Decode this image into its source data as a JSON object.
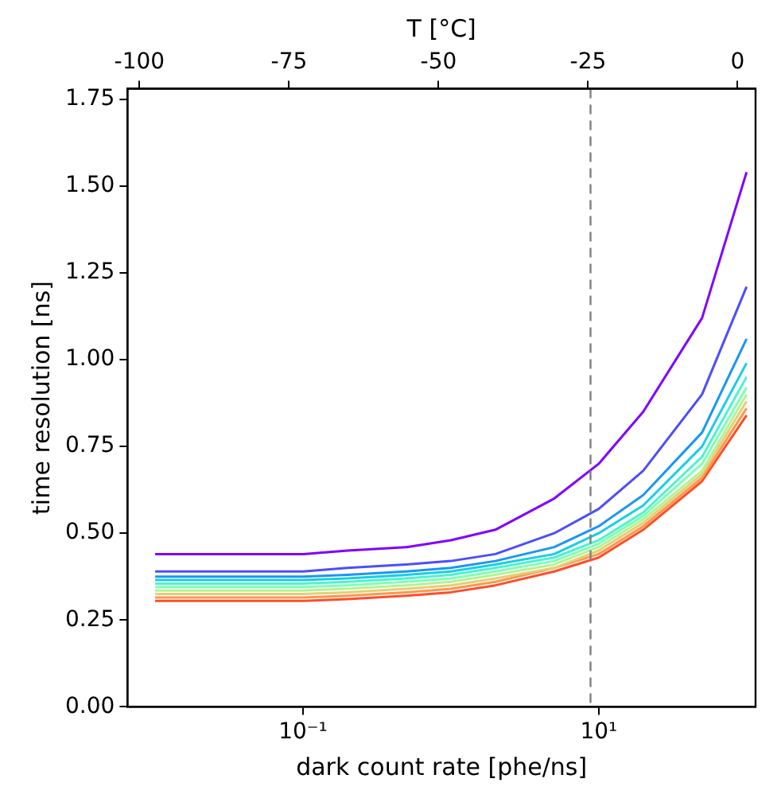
{
  "chart_data": {
    "type": "line",
    "xlabel": "dark count rate [phe/ns]",
    "ylabel": "time resolution [ns]",
    "x2label": "T [°C]",
    "log": "x",
    "xlim": [
      0.0065,
      115
    ],
    "xticks": [
      {
        "value": 0.1,
        "label": "10⁻¹"
      },
      {
        "value": 10,
        "label": "10¹"
      }
    ],
    "x2lim": [
      -102,
      3
    ],
    "x2ticks": [
      -100,
      -75,
      -50,
      -25,
      0
    ],
    "ylim": [
      0,
      1.78
    ],
    "yticks": [
      {
        "value": 0,
        "label": "0.00"
      },
      {
        "value": 0.25,
        "label": "0.25"
      },
      {
        "value": 0.5,
        "label": "0.50"
      },
      {
        "value": 0.75,
        "label": "0.75"
      },
      {
        "value": 1,
        "label": "1.00"
      },
      {
        "value": 1.25,
        "label": "1.25"
      },
      {
        "value": 1.5,
        "label": "1.50"
      },
      {
        "value": 1.75,
        "label": "1.75"
      }
    ],
    "grid": false,
    "legend": false,
    "marker": "none",
    "line_style": "solid",
    "x": [
      0.01,
      0.02,
      0.05,
      0.1,
      0.2,
      0.5,
      1,
      2,
      5,
      10,
      20,
      50,
      100
    ],
    "ref_lines": [
      {
        "axis": "x",
        "value": 8.8,
        "color": "#808080",
        "line_style": "dashed"
      }
    ],
    "series": [
      {
        "color": "#8000ff",
        "values": [
          0.44,
          0.44,
          0.44,
          0.44,
          0.45,
          0.46,
          0.48,
          0.51,
          0.6,
          0.7,
          0.85,
          1.12,
          1.54
        ]
      },
      {
        "color": "#4d4dfc",
        "values": [
          0.39,
          0.39,
          0.39,
          0.39,
          0.4,
          0.41,
          0.42,
          0.44,
          0.5,
          0.57,
          0.68,
          0.9,
          1.21
        ]
      },
      {
        "color": "#1a96f3",
        "values": [
          0.375,
          0.375,
          0.375,
          0.375,
          0.38,
          0.39,
          0.4,
          0.42,
          0.46,
          0.52,
          0.61,
          0.79,
          1.06
        ]
      },
      {
        "color": "#19cee3",
        "values": [
          0.365,
          0.365,
          0.365,
          0.365,
          0.37,
          0.38,
          0.39,
          0.41,
          0.44,
          0.5,
          0.58,
          0.75,
          0.99
        ]
      },
      {
        "color": "#4df3ce",
        "values": [
          0.355,
          0.355,
          0.355,
          0.355,
          0.36,
          0.37,
          0.38,
          0.4,
          0.43,
          0.48,
          0.56,
          0.72,
          0.95
        ]
      },
      {
        "color": "#80ffb4",
        "values": [
          0.345,
          0.345,
          0.345,
          0.345,
          0.35,
          0.36,
          0.37,
          0.39,
          0.42,
          0.47,
          0.55,
          0.7,
          0.92
        ]
      },
      {
        "color": "#b3f396",
        "values": [
          0.335,
          0.335,
          0.335,
          0.335,
          0.34,
          0.35,
          0.36,
          0.38,
          0.41,
          0.46,
          0.54,
          0.68,
          0.9
        ]
      },
      {
        "color": "#e6ce74",
        "values": [
          0.325,
          0.325,
          0.325,
          0.325,
          0.33,
          0.34,
          0.35,
          0.37,
          0.4,
          0.45,
          0.53,
          0.67,
          0.88
        ]
      },
      {
        "color": "#ff964f",
        "values": [
          0.315,
          0.315,
          0.315,
          0.315,
          0.32,
          0.33,
          0.34,
          0.36,
          0.4,
          0.44,
          0.52,
          0.66,
          0.86
        ]
      },
      {
        "color": "#ff4d27",
        "values": [
          0.305,
          0.305,
          0.305,
          0.305,
          0.31,
          0.32,
          0.33,
          0.35,
          0.39,
          0.43,
          0.51,
          0.65,
          0.84
        ]
      }
    ]
  }
}
